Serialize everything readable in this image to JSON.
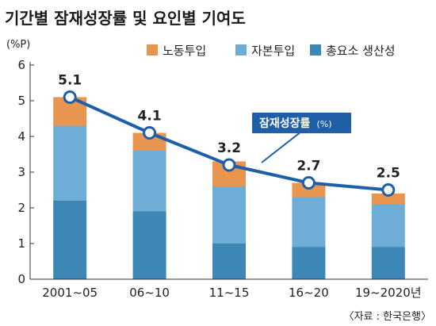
{
  "chart_data": {
    "type": "bar",
    "title": "기간별 잠재성장률 및 요인별 기여도",
    "unit_label": "(%P)",
    "categories": [
      "2001~05",
      "06~10",
      "11~15",
      "16~20",
      "19~2020년"
    ],
    "ylim": [
      0,
      6
    ],
    "yticks": [
      0,
      1,
      2,
      3,
      4,
      5,
      6
    ],
    "grid": false,
    "stacked": true,
    "legend_position": "top",
    "series": [
      {
        "name": "총요소 생산성",
        "color": "#3c87b6",
        "values": [
          2.2,
          1.9,
          1.0,
          0.9,
          0.9
        ]
      },
      {
        "name": "자본투입",
        "color": "#6eadd6",
        "values": [
          2.1,
          1.7,
          1.6,
          1.4,
          1.2
        ]
      },
      {
        "name": "노동투입",
        "color": "#e8964f",
        "values": [
          0.8,
          0.5,
          0.7,
          0.4,
          0.3
        ]
      }
    ],
    "line": {
      "name": "잠재성장률",
      "unit": "(%)",
      "color": "#1f5fa8",
      "values": [
        5.1,
        4.1,
        3.2,
        2.7,
        2.5
      ],
      "labels": [
        "5.1",
        "4.1",
        "3.2",
        "2.7",
        "2.5"
      ]
    },
    "source": "〈자료 : 한국은행〉"
  }
}
